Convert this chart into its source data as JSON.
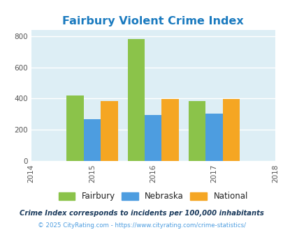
{
  "title": "Fairbury Violent Crime Index",
  "title_color": "#1a7abf",
  "years": [
    2014,
    2015,
    2016,
    2017,
    2018
  ],
  "bar_years": [
    2015,
    2016,
    2017
  ],
  "fairbury": [
    422,
    783,
    385
  ],
  "nebraska": [
    268,
    295,
    302
  ],
  "national": [
    385,
    398,
    398
  ],
  "fairbury_color": "#8bc34a",
  "nebraska_color": "#4d9de0",
  "national_color": "#f5a623",
  "background_color": "#ddeef5",
  "ylim": [
    0,
    840
  ],
  "yticks": [
    0,
    200,
    400,
    600,
    800
  ],
  "bar_width": 0.28,
  "legend_labels": [
    "Fairbury",
    "Nebraska",
    "National"
  ],
  "legend_text_color": "#222222",
  "footnote1": "Crime Index corresponds to incidents per 100,000 inhabitants",
  "footnote2": "© 2025 CityRating.com - https://www.cityrating.com/crime-statistics/",
  "footnote1_color": "#1a3a5c",
  "footnote2_color": "#4d9de0"
}
